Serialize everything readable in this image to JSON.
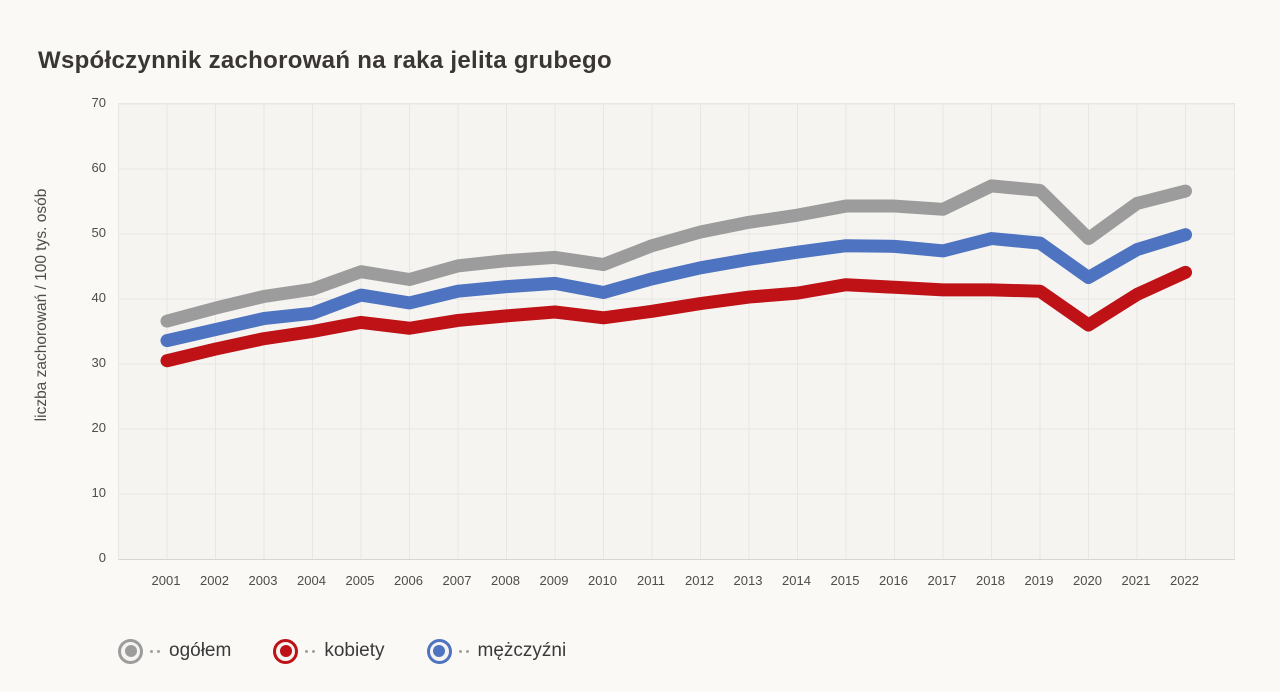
{
  "page": {
    "background": "#faf9f6"
  },
  "chart_data": {
    "type": "line",
    "title": "Współczynnik zachorowań na raka jelita grubego",
    "xlabel": "",
    "ylabel": "liczba zachorowań / 100 tys. osób",
    "ylim": [
      0,
      70
    ],
    "y_ticks": [
      0,
      10,
      20,
      30,
      40,
      50,
      60,
      70
    ],
    "grid": true,
    "legend_position": "bottom",
    "categories": [
      "2001",
      "2002",
      "2003",
      "2004",
      "2005",
      "2006",
      "2007",
      "2008",
      "2009",
      "2010",
      "2011",
      "2012",
      "2013",
      "2014",
      "2015",
      "2016",
      "2017",
      "2018",
      "2019",
      "2020",
      "2021",
      "2022"
    ],
    "series": [
      {
        "name": "ogółem",
        "color": "#9c9c9c",
        "values": [
          36.6,
          38.6,
          40.4,
          41.5,
          44.2,
          43.0,
          45.1,
          45.9,
          46.4,
          45.3,
          48.2,
          50.3,
          51.8,
          52.9,
          54.3,
          54.3,
          53.8,
          57.4,
          56.7,
          49.3,
          54.7,
          56.6
        ]
      },
      {
        "name": "kobiety",
        "color": "#be1217",
        "values": [
          30.5,
          32.3,
          33.9,
          35.0,
          36.4,
          35.5,
          36.7,
          37.4,
          38.0,
          37.1,
          38.1,
          39.3,
          40.3,
          40.9,
          42.2,
          41.8,
          41.4,
          41.4,
          41.2,
          36.0,
          40.7,
          44.1
        ]
      },
      {
        "name": "mężczyźni",
        "color": "#4e73c0",
        "values": [
          33.6,
          35.3,
          37.0,
          37.8,
          40.6,
          39.4,
          41.2,
          41.9,
          42.4,
          41.0,
          43.1,
          44.8,
          46.1,
          47.2,
          48.2,
          48.1,
          47.4,
          49.3,
          48.6,
          43.3,
          47.6,
          49.9
        ]
      }
    ],
    "line_width": 13,
    "grid_color": "#e8e6e2"
  }
}
